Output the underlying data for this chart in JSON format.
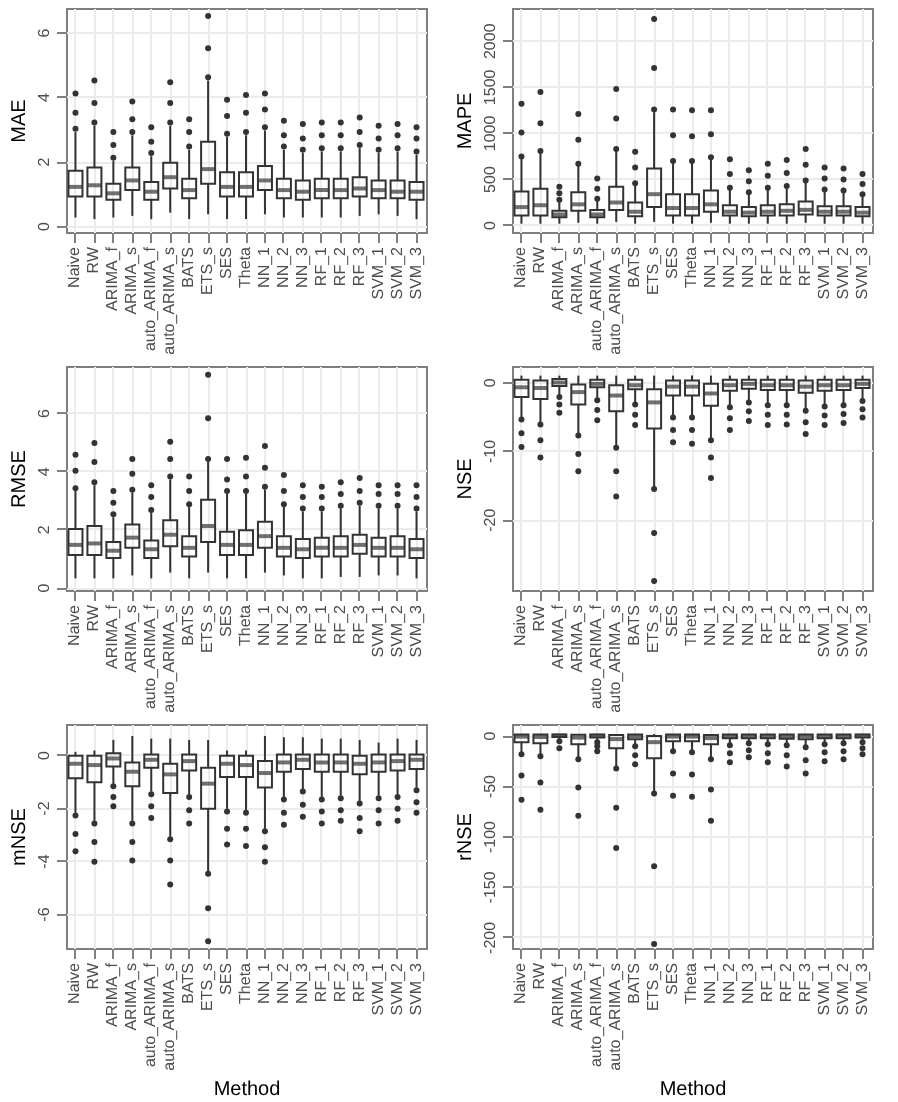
{
  "chart_data": [
    {
      "type": "box",
      "ylabel": "MAE",
      "ylim": [
        -0.2,
        6.75
      ],
      "yticks": [
        0,
        2,
        4,
        6
      ],
      "grid": true,
      "categories": [
        "Naive",
        "RW",
        "ARIMA_f",
        "ARIMA_s",
        "auto_ARIMA_f",
        "auto_ARIMA_s",
        "BATS",
        "ETS_s",
        "SES",
        "Theta",
        "NN_1",
        "NN_2",
        "NN_3",
        "RF_1",
        "RF_2",
        "RF_3",
        "SVM_1",
        "SVM_2",
        "SVM_3"
      ],
      "series": [
        {
          "color": "#333333",
          "boxes": [
            {
              "low": 0.25,
              "q1": 0.9,
              "median": 1.2,
              "q3": 1.7,
              "high": 2.9,
              "outliers": [
                3.0,
                3.5,
                4.1
              ]
            },
            {
              "low": 0.2,
              "q1": 0.9,
              "median": 1.25,
              "q3": 1.8,
              "high": 3.1,
              "outliers": [
                3.2,
                3.8,
                4.5
              ]
            },
            {
              "low": 0.25,
              "q1": 0.8,
              "median": 1.0,
              "q3": 1.3,
              "high": 2.0,
              "outliers": [
                2.1,
                2.5,
                2.9
              ]
            },
            {
              "low": 0.3,
              "q1": 1.1,
              "median": 1.4,
              "q3": 1.8,
              "high": 2.8,
              "outliers": [
                2.9,
                3.3,
                3.85
              ]
            },
            {
              "low": 0.2,
              "q1": 0.8,
              "median": 1.05,
              "q3": 1.35,
              "high": 2.15,
              "outliers": [
                2.25,
                2.6,
                3.05
              ]
            },
            {
              "low": 0.4,
              "q1": 1.15,
              "median": 1.5,
              "q3": 1.95,
              "high": 3.1,
              "outliers": [
                3.2,
                3.8,
                4.45
              ]
            },
            {
              "low": 0.2,
              "q1": 0.85,
              "median": 1.1,
              "q3": 1.45,
              "high": 2.35,
              "outliers": [
                2.45,
                2.9,
                3.3
              ]
            },
            {
              "low": 0.35,
              "q1": 1.3,
              "median": 1.75,
              "q3": 2.6,
              "high": 4.5,
              "outliers": [
                4.6,
                5.5,
                6.5
              ]
            },
            {
              "low": 0.2,
              "q1": 0.9,
              "median": 1.2,
              "q3": 1.65,
              "high": 2.75,
              "outliers": [
                2.85,
                3.4,
                3.9
              ]
            },
            {
              "low": 0.2,
              "q1": 0.9,
              "median": 1.2,
              "q3": 1.65,
              "high": 2.8,
              "outliers": [
                2.9,
                3.5,
                4.05
              ]
            },
            {
              "low": 0.35,
              "q1": 1.1,
              "median": 1.4,
              "q3": 1.85,
              "high": 2.95,
              "outliers": [
                3.05,
                3.6,
                4.1
              ]
            },
            {
              "low": 0.25,
              "q1": 0.85,
              "median": 1.1,
              "q3": 1.45,
              "high": 2.35,
              "outliers": [
                2.45,
                2.8,
                3.25
              ]
            },
            {
              "low": 0.25,
              "q1": 0.8,
              "median": 1.05,
              "q3": 1.4,
              "high": 2.25,
              "outliers": [
                2.35,
                2.7,
                3.15
              ]
            },
            {
              "low": 0.25,
              "q1": 0.85,
              "median": 1.1,
              "q3": 1.45,
              "high": 2.3,
              "outliers": [
                2.4,
                2.8,
                3.2
              ]
            },
            {
              "low": 0.25,
              "q1": 0.85,
              "median": 1.1,
              "q3": 1.45,
              "high": 2.3,
              "outliers": [
                2.4,
                2.8,
                3.2
              ]
            },
            {
              "low": 0.3,
              "q1": 0.9,
              "median": 1.15,
              "q3": 1.5,
              "high": 2.4,
              "outliers": [
                2.5,
                2.9,
                3.35
              ]
            },
            {
              "low": 0.35,
              "q1": 0.85,
              "median": 1.1,
              "q3": 1.4,
              "high": 2.25,
              "outliers": [
                2.35,
                2.7,
                3.1
              ]
            },
            {
              "low": 0.3,
              "q1": 0.85,
              "median": 1.05,
              "q3": 1.4,
              "high": 2.3,
              "outliers": [
                2.4,
                2.8,
                3.15
              ]
            },
            {
              "low": 0.2,
              "q1": 0.8,
              "median": 1.05,
              "q3": 1.35,
              "high": 2.2,
              "outliers": [
                2.3,
                2.7,
                3.05
              ]
            }
          ]
        }
      ]
    },
    {
      "type": "box",
      "ylabel": "MAPE",
      "ylim": [
        -80,
        2350
      ],
      "yticks": [
        0,
        500,
        1000,
        1500,
        2000
      ],
      "grid": true,
      "categories": [
        "Naive",
        "RW",
        "ARIMA_f",
        "ARIMA_s",
        "auto_ARIMA_f",
        "auto_ARIMA_s",
        "BATS",
        "ETS_s",
        "SES",
        "Theta",
        "NN_1",
        "NN_2",
        "NN_3",
        "RF_1",
        "RF_2",
        "RF_3",
        "SVM_1",
        "SVM_2",
        "SVM_3"
      ],
      "series": [
        {
          "color": "#333333",
          "boxes": [
            {
              "low": 10,
              "q1": 100,
              "median": 190,
              "q3": 360,
              "high": 720,
              "outliers": [
                740,
                1000,
                1310
              ]
            },
            {
              "low": 10,
              "q1": 100,
              "median": 210,
              "q3": 390,
              "high": 780,
              "outliers": [
                800,
                1100,
                1440
              ]
            },
            {
              "low": 10,
              "q1": 80,
              "median": 110,
              "q3": 150,
              "high": 250,
              "outliers": [
                270,
                340,
                410
              ]
            },
            {
              "low": 20,
              "q1": 150,
              "median": 220,
              "q3": 350,
              "high": 640,
              "outliers": [
                660,
                920,
                1200
              ]
            },
            {
              "low": 10,
              "q1": 80,
              "median": 110,
              "q3": 160,
              "high": 260,
              "outliers": [
                280,
                390,
                500
              ]
            },
            {
              "low": 30,
              "q1": 160,
              "median": 240,
              "q3": 410,
              "high": 800,
              "outliers": [
                820,
                1150,
                1470
              ]
            },
            {
              "low": 10,
              "q1": 90,
              "median": 140,
              "q3": 240,
              "high": 430,
              "outliers": [
                450,
                620,
                790
              ]
            },
            {
              "low": 30,
              "q1": 190,
              "median": 330,
              "q3": 610,
              "high": 1220,
              "outliers": [
                1250,
                1700,
                2230
              ]
            },
            {
              "low": 10,
              "q1": 100,
              "median": 180,
              "q3": 330,
              "high": 670,
              "outliers": [
                690,
                970,
                1250
              ]
            },
            {
              "low": 10,
              "q1": 100,
              "median": 180,
              "q3": 330,
              "high": 670,
              "outliers": [
                690,
                960,
                1240
              ]
            },
            {
              "low": 20,
              "q1": 140,
              "median": 220,
              "q3": 370,
              "high": 710,
              "outliers": [
                730,
                980,
                1240
              ]
            },
            {
              "low": 10,
              "q1": 100,
              "median": 140,
              "q3": 210,
              "high": 380,
              "outliers": [
                400,
                550,
                710
              ]
            },
            {
              "low": 10,
              "q1": 90,
              "median": 130,
              "q3": 190,
              "high": 330,
              "outliers": [
                350,
                470,
                590
              ]
            },
            {
              "low": 10,
              "q1": 100,
              "median": 140,
              "q3": 210,
              "high": 380,
              "outliers": [
                400,
                530,
                660
              ]
            },
            {
              "low": 10,
              "q1": 100,
              "median": 150,
              "q3": 220,
              "high": 400,
              "outliers": [
                420,
                560,
                700
              ]
            },
            {
              "low": 20,
              "q1": 110,
              "median": 160,
              "q3": 250,
              "high": 460,
              "outliers": [
                480,
                650,
                820
              ]
            },
            {
              "low": 10,
              "q1": 100,
              "median": 140,
              "q3": 200,
              "high": 360,
              "outliers": [
                380,
                500,
                620
              ]
            },
            {
              "low": 10,
              "q1": 100,
              "median": 140,
              "q3": 200,
              "high": 350,
              "outliers": [
                370,
                490,
                610
              ]
            },
            {
              "low": 10,
              "q1": 90,
              "median": 130,
              "q3": 190,
              "high": 310,
              "outliers": [
                330,
                440,
                550
              ]
            }
          ]
        }
      ]
    },
    {
      "type": "box",
      "ylabel": "RMSE",
      "ylim": [
        -0.1,
        7.6
      ],
      "yticks": [
        0,
        2,
        4,
        6
      ],
      "grid": true,
      "categories": [
        "Naive",
        "RW",
        "ARIMA_f",
        "ARIMA_s",
        "auto_ARIMA_f",
        "auto_ARIMA_s",
        "BATS",
        "ETS_s",
        "SES",
        "Theta",
        "NN_1",
        "NN_2",
        "NN_3",
        "RF_1",
        "RF_2",
        "RF_3",
        "SVM_1",
        "SVM_2",
        "SVM_3"
      ],
      "series": [
        {
          "color": "#333333",
          "boxes": [
            {
              "low": 0.3,
              "q1": 1.1,
              "median": 1.45,
              "q3": 2.0,
              "high": 3.3,
              "outliers": [
                3.4,
                4.0,
                4.55
              ]
            },
            {
              "low": 0.3,
              "q1": 1.1,
              "median": 1.5,
              "q3": 2.1,
              "high": 3.5,
              "outliers": [
                3.6,
                4.3,
                4.95
              ]
            },
            {
              "low": 0.3,
              "q1": 1.0,
              "median": 1.25,
              "q3": 1.55,
              "high": 2.4,
              "outliers": [
                2.5,
                2.9,
                3.3
              ]
            },
            {
              "low": 0.4,
              "q1": 1.35,
              "median": 1.7,
              "q3": 2.15,
              "high": 3.25,
              "outliers": [
                3.35,
                3.9,
                4.4
              ]
            },
            {
              "low": 0.3,
              "q1": 1.0,
              "median": 1.3,
              "q3": 1.6,
              "high": 2.55,
              "outliers": [
                2.65,
                3.1,
                3.5
              ]
            },
            {
              "low": 0.5,
              "q1": 1.4,
              "median": 1.8,
              "q3": 2.3,
              "high": 3.7,
              "outliers": [
                3.8,
                4.4,
                5.0
              ]
            },
            {
              "low": 0.3,
              "q1": 1.05,
              "median": 1.35,
              "q3": 1.75,
              "high": 2.75,
              "outliers": [
                2.85,
                3.3,
                3.8
              ]
            },
            {
              "low": 0.5,
              "q1": 1.55,
              "median": 2.1,
              "q3": 3.0,
              "high": 4.3,
              "outliers": [
                4.4,
                5.8,
                7.3
              ]
            },
            {
              "low": 0.3,
              "q1": 1.1,
              "median": 1.45,
              "q3": 1.9,
              "high": 3.2,
              "outliers": [
                3.3,
                3.7,
                4.4
              ]
            },
            {
              "low": 0.3,
              "q1": 1.1,
              "median": 1.45,
              "q3": 1.95,
              "high": 3.2,
              "outliers": [
                3.3,
                3.8,
                4.45
              ]
            },
            {
              "low": 0.5,
              "q1": 1.35,
              "median": 1.75,
              "q3": 2.25,
              "high": 3.35,
              "outliers": [
                3.45,
                4.1,
                4.85
              ]
            },
            {
              "low": 0.4,
              "q1": 1.05,
              "median": 1.35,
              "q3": 1.75,
              "high": 2.75,
              "outliers": [
                2.85,
                3.3,
                3.85
              ]
            },
            {
              "low": 0.3,
              "q1": 1.0,
              "median": 1.3,
              "q3": 1.65,
              "high": 2.6,
              "outliers": [
                2.7,
                3.1,
                3.5
              ]
            },
            {
              "low": 0.3,
              "q1": 1.05,
              "median": 1.35,
              "q3": 1.7,
              "high": 2.6,
              "outliers": [
                2.7,
                3.1,
                3.45
              ]
            },
            {
              "low": 0.35,
              "q1": 1.05,
              "median": 1.35,
              "q3": 1.75,
              "high": 2.7,
              "outliers": [
                2.8,
                3.2,
                3.6
              ]
            },
            {
              "low": 0.35,
              "q1": 1.15,
              "median": 1.45,
              "q3": 1.8,
              "high": 2.8,
              "outliers": [
                2.9,
                3.3,
                3.75
              ]
            },
            {
              "low": 0.4,
              "q1": 1.05,
              "median": 1.35,
              "q3": 1.7,
              "high": 2.7,
              "outliers": [
                2.8,
                3.2,
                3.5
              ]
            },
            {
              "low": 0.4,
              "q1": 1.05,
              "median": 1.35,
              "q3": 1.75,
              "high": 2.7,
              "outliers": [
                2.8,
                3.2,
                3.5
              ]
            },
            {
              "low": 0.3,
              "q1": 1.0,
              "median": 1.3,
              "q3": 1.65,
              "high": 2.6,
              "outliers": [
                2.7,
                3.1,
                3.5
              ]
            }
          ]
        }
      ]
    },
    {
      "type": "box",
      "ylabel": "NSE",
      "ylim": [
        -30.3,
        2.3
      ],
      "yticks": [
        -20,
        -10,
        0
      ],
      "grid": true,
      "categories": [
        "Naive",
        "RW",
        "ARIMA_f",
        "ARIMA_s",
        "auto_ARIMA_f",
        "auto_ARIMA_s",
        "BATS",
        "ETS_s",
        "SES",
        "Theta",
        "NN_1",
        "NN_2",
        "NN_3",
        "RF_1",
        "RF_2",
        "RF_3",
        "SVM_1",
        "SVM_2",
        "SVM_3"
      ],
      "series": [
        {
          "color": "#333333",
          "boxes": [
            {
              "low": -5.3,
              "q1": -2.2,
              "median": -0.8,
              "q3": 0.3,
              "high": 0.9,
              "outliers": [
                -5.5,
                -7.5,
                -9.5
              ]
            },
            {
              "low": -6.0,
              "q1": -2.5,
              "median": -0.9,
              "q3": 0.2,
              "high": 0.9,
              "outliers": [
                -6.2,
                -8.5,
                -11
              ]
            },
            {
              "low": -2.0,
              "q1": -0.6,
              "median": -0.1,
              "q3": 0.4,
              "high": 0.9,
              "outliers": [
                -2.2,
                -3.3,
                -4.5
              ]
            },
            {
              "low": -7.5,
              "q1": -3.3,
              "median": -1.5,
              "q3": -0.4,
              "high": 0.9,
              "outliers": [
                -7.8,
                -10.5,
                -13
              ]
            },
            {
              "low": -2.5,
              "q1": -0.8,
              "median": -0.3,
              "q3": 0.3,
              "high": 0.9,
              "outliers": [
                -2.7,
                -4.1,
                -5.6
              ]
            },
            {
              "low": -9.3,
              "q1": -4.3,
              "median": -2.0,
              "q3": -0.5,
              "high": 0.9,
              "outliers": [
                -9.6,
                -13,
                -16.7
              ]
            },
            {
              "low": -3.1,
              "q1": -1.1,
              "median": -0.5,
              "q3": 0.3,
              "high": 0.9,
              "outliers": [
                -3.3,
                -4.8,
                -6.3
              ]
            },
            {
              "low": -15.3,
              "q1": -6.8,
              "median": -3.0,
              "q3": -1.1,
              "high": 0.9,
              "outliers": [
                -15.6,
                -22,
                -29
              ]
            },
            {
              "low": -5.0,
              "q1": -2.0,
              "median": -0.7,
              "q3": 0.2,
              "high": 0.9,
              "outliers": [
                -5.2,
                -7,
                -8.8
              ]
            },
            {
              "low": -5.0,
              "q1": -2.0,
              "median": -0.7,
              "q3": 0.2,
              "high": 0.9,
              "outliers": [
                -5.2,
                -7,
                -9
              ]
            },
            {
              "low": -8.2,
              "q1": -3.5,
              "median": -1.7,
              "q3": -0.3,
              "high": 0.9,
              "outliers": [
                -8.5,
                -11,
                -14
              ]
            },
            {
              "low": -3.5,
              "q1": -1.3,
              "median": -0.5,
              "q3": 0.3,
              "high": 0.9,
              "outliers": [
                -3.7,
                -5.3,
                -7.0
              ]
            },
            {
              "low": -2.8,
              "q1": -1.0,
              "median": -0.3,
              "q3": 0.3,
              "high": 0.9,
              "outliers": [
                -3.0,
                -4.3,
                -5.7
              ]
            },
            {
              "low": -3.2,
              "q1": -1.2,
              "median": -0.5,
              "q3": 0.3,
              "high": 0.9,
              "outliers": [
                -3.4,
                -4.8,
                -6.3
              ]
            },
            {
              "low": -3.2,
              "q1": -1.2,
              "median": -0.5,
              "q3": 0.3,
              "high": 0.9,
              "outliers": [
                -3.4,
                -4.8,
                -6.2
              ]
            },
            {
              "low": -4.0,
              "q1": -1.6,
              "median": -0.7,
              "q3": 0.2,
              "high": 0.9,
              "outliers": [
                -4.2,
                -5.9,
                -7.6
              ]
            },
            {
              "low": -3.4,
              "q1": -1.3,
              "median": -0.5,
              "q3": 0.3,
              "high": 0.9,
              "outliers": [
                -3.6,
                -4.9,
                -6.3
              ]
            },
            {
              "low": -3.2,
              "q1": -1.2,
              "median": -0.5,
              "q3": 0.3,
              "high": 0.9,
              "outliers": [
                -3.4,
                -4.7,
                -6.0
              ]
            },
            {
              "low": -2.6,
              "q1": -0.9,
              "median": -0.3,
              "q3": 0.3,
              "high": 0.9,
              "outliers": [
                -2.8,
                -4.0,
                -5.2
              ]
            }
          ]
        }
      ]
    },
    {
      "type": "box",
      "xlabel": "Method",
      "ylabel": "mNSE",
      "ylim": [
        -7.3,
        1.15
      ],
      "yticks": [
        -6,
        -4,
        -2,
        0
      ],
      "grid": true,
      "categories": [
        "Naive",
        "RW",
        "ARIMA_f",
        "ARIMA_s",
        "auto_ARIMA_f",
        "auto_ARIMA_s",
        "BATS",
        "ETS_s",
        "SES",
        "Theta",
        "NN_1",
        "NN_2",
        "NN_3",
        "RF_1",
        "RF_2",
        "RF_3",
        "SVM_1",
        "SVM_2",
        "SVM_3"
      ],
      "series": [
        {
          "color": "#333333",
          "boxes": [
            {
              "low": -2.2,
              "q1": -0.9,
              "median": -0.35,
              "q3": -0.05,
              "high": 0.1,
              "outliers": [
                -2.3,
                -3.0,
                -3.65
              ]
            },
            {
              "low": -2.5,
              "q1": -1.05,
              "median": -0.4,
              "q3": -0.05,
              "high": 0.15,
              "outliers": [
                -2.6,
                -3.3,
                -4.05
              ]
            },
            {
              "low": -1.1,
              "q1": -0.45,
              "median": -0.15,
              "q3": 0.05,
              "high": 0.55,
              "outliers": [
                -1.2,
                -1.6,
                -1.95
              ]
            },
            {
              "low": -2.5,
              "q1": -1.2,
              "median": -0.65,
              "q3": -0.3,
              "high": 0.7,
              "outliers": [
                -2.6,
                -3.3,
                -4.0
              ]
            },
            {
              "low": -1.4,
              "q1": -0.5,
              "median": -0.2,
              "q3": 0.0,
              "high": 0.6,
              "outliers": [
                -1.5,
                -1.95,
                -2.4
              ]
            },
            {
              "low": -3.1,
              "q1": -1.45,
              "median": -0.75,
              "q3": -0.35,
              "high": 0.6,
              "outliers": [
                -3.2,
                -4.0,
                -4.9
              ]
            },
            {
              "low": -1.5,
              "q1": -0.6,
              "median": -0.25,
              "q3": 0.0,
              "high": 0.55,
              "outliers": [
                -1.6,
                -2.1,
                -2.6
              ]
            },
            {
              "low": -4.4,
              "q1": -2.05,
              "median": -1.1,
              "q3": -0.5,
              "high": 0.55,
              "outliers": [
                -4.5,
                -5.8,
                -7.05
              ]
            },
            {
              "low": -2.05,
              "q1": -0.85,
              "median": -0.35,
              "q3": -0.05,
              "high": 0.15,
              "outliers": [
                -2.15,
                -2.8,
                -3.4
              ]
            },
            {
              "low": -2.1,
              "q1": -0.85,
              "median": -0.4,
              "q3": -0.05,
              "high": 0.15,
              "outliers": [
                -2.2,
                -2.8,
                -3.45
              ]
            },
            {
              "low": -2.8,
              "q1": -1.25,
              "median": -0.7,
              "q3": -0.25,
              "high": 0.7,
              "outliers": [
                -2.9,
                -3.5,
                -4.05
              ]
            },
            {
              "low": -1.6,
              "q1": -0.65,
              "median": -0.3,
              "q3": 0.0,
              "high": 0.65,
              "outliers": [
                -1.7,
                -2.2,
                -2.65
              ]
            },
            {
              "low": -1.3,
              "q1": -0.55,
              "median": -0.2,
              "q3": 0.0,
              "high": 0.65,
              "outliers": [
                -1.4,
                -1.9,
                -2.35
              ]
            },
            {
              "low": -1.6,
              "q1": -0.65,
              "median": -0.3,
              "q3": 0.0,
              "high": 0.6,
              "outliers": [
                -1.7,
                -2.15,
                -2.6
              ]
            },
            {
              "low": -1.55,
              "q1": -0.65,
              "median": -0.3,
              "q3": 0.0,
              "high": 0.6,
              "outliers": [
                -1.65,
                -2.1,
                -2.5
              ]
            },
            {
              "low": -1.75,
              "q1": -0.75,
              "median": -0.35,
              "q3": -0.05,
              "high": 0.55,
              "outliers": [
                -1.85,
                -2.4,
                -2.9
              ]
            },
            {
              "low": -1.55,
              "q1": -0.65,
              "median": -0.3,
              "q3": 0.0,
              "high": 0.45,
              "outliers": [
                -1.65,
                -2.1,
                -2.6
              ]
            },
            {
              "low": -1.5,
              "q1": -0.6,
              "median": -0.25,
              "q3": 0.0,
              "high": 0.6,
              "outliers": [
                -1.6,
                -2.05,
                -2.5
              ]
            },
            {
              "low": -1.25,
              "q1": -0.55,
              "median": -0.2,
              "q3": 0.0,
              "high": 0.55,
              "outliers": [
                -1.35,
                -1.8,
                -2.2
              ]
            }
          ]
        }
      ]
    },
    {
      "type": "box",
      "xlabel": "Method",
      "ylabel": "rNSE",
      "ylim": [
        -211,
        11
      ],
      "yticks": [
        -200,
        -150,
        -100,
        -50,
        0
      ],
      "grid": true,
      "categories": [
        "Naive",
        "RW",
        "ARIMA_f",
        "ARIMA_s",
        "auto_ARIMA_f",
        "auto_ARIMA_s",
        "BATS",
        "ETS_s",
        "SES",
        "Theta",
        "NN_1",
        "NN_2",
        "NN_3",
        "RF_1",
        "RF_2",
        "RF_3",
        "SVM_1",
        "SVM_2",
        "SVM_3"
      ],
      "series": [
        {
          "color": "#333333",
          "boxes": [
            {
              "low": -18,
              "q1": -7,
              "median": -1.5,
              "q3": 0.5,
              "high": 1,
              "outliers": [
                -19,
                -40,
                -64
              ]
            },
            {
              "low": -20,
              "q1": -8,
              "median": -2,
              "q3": 0.5,
              "high": 1,
              "outliers": [
                -21,
                -47,
                -74
              ]
            },
            {
              "low": -5,
              "q1": -2,
              "median": -0.5,
              "q3": 0.5,
              "high": 1,
              "outliers": [
                -6,
                -13
              ]
            },
            {
              "low": -23,
              "q1": -9,
              "median": -2.5,
              "q3": 0.3,
              "high": 1,
              "outliers": [
                -24,
                -52,
                -80
              ]
            },
            {
              "low": -6,
              "q1": -2.5,
              "median": -0.7,
              "q3": 0.5,
              "high": 1,
              "outliers": [
                -7,
                -11,
                -16
              ]
            },
            {
              "low": -32,
              "q1": -13,
              "median": -4,
              "q3": 0,
              "high": 1,
              "outliers": [
                -33,
                -72,
                -112
              ]
            },
            {
              "low": -10,
              "q1": -4,
              "median": -1,
              "q3": 0.5,
              "high": 1,
              "outliers": [
                -11,
                -20,
                -29
              ]
            },
            {
              "low": -57,
              "q1": -23,
              "median": -7,
              "q3": -1,
              "high": 1,
              "outliers": [
                -58,
                -130,
                -207
              ]
            },
            {
              "low": -15,
              "q1": -6,
              "median": -1.5,
              "q3": 0.5,
              "high": 1,
              "outliers": [
                -16,
                -38,
                -60
              ]
            },
            {
              "low": -16,
              "q1": -6,
              "median": -1.5,
              "q3": 0.5,
              "high": 1,
              "outliers": [
                -17,
                -39,
                -61
              ]
            },
            {
              "low": -23,
              "q1": -9,
              "median": -3,
              "q3": 0,
              "high": 1,
              "outliers": [
                -24,
                -54,
                -85
              ]
            },
            {
              "low": -9,
              "q1": -3,
              "median": -1,
              "q3": 0.5,
              "high": 1,
              "outliers": [
                -10,
                -18,
                -27
              ]
            },
            {
              "low": -7,
              "q1": -3,
              "median": -0.8,
              "q3": 0.5,
              "high": 1,
              "outliers": [
                -8,
                -15,
                -22
              ]
            },
            {
              "low": -8,
              "q1": -3,
              "median": -1,
              "q3": 0.5,
              "high": 1,
              "outliers": [
                -9,
                -18,
                -27
              ]
            },
            {
              "low": -9,
              "q1": -3.5,
              "median": -1,
              "q3": 0.5,
              "high": 1,
              "outliers": [
                -10,
                -20,
                -31
              ]
            },
            {
              "low": -11,
              "q1": -4,
              "median": -1,
              "q3": 0.5,
              "high": 1,
              "outliers": [
                -12,
                -25,
                -38
              ]
            },
            {
              "low": -8,
              "q1": -3,
              "median": -1,
              "q3": 0.5,
              "high": 1,
              "outliers": [
                -9,
                -17,
                -26
              ]
            },
            {
              "low": -7,
              "q1": -3,
              "median": -0.8,
              "q3": 0.5,
              "high": 1,
              "outliers": [
                -8,
                -16,
                -24
              ]
            },
            {
              "low": -6,
              "q1": -2.5,
              "median": -0.7,
              "q3": 0.5,
              "high": 1,
              "outliers": [
                -7,
                -13,
                -19
              ]
            }
          ]
        }
      ]
    }
  ]
}
